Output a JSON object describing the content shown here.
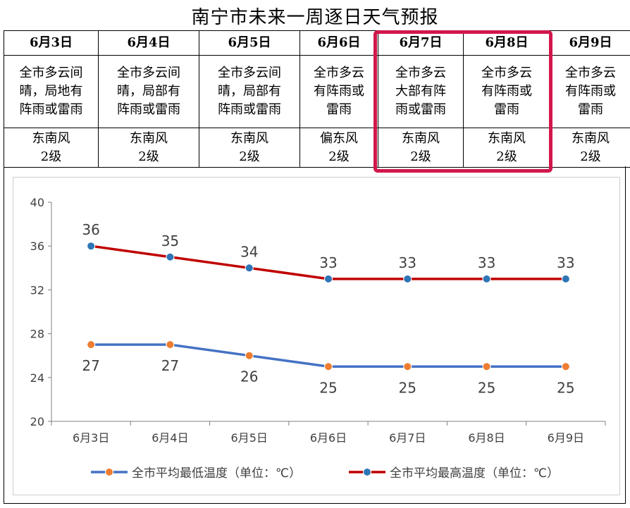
{
  "title": "南宁市未来一周逐日天气预报",
  "table": {
    "dates": [
      "6月3日",
      "6月4日",
      "6月5日",
      "6月6日",
      "6月7日",
      "6月8日",
      "6月9日"
    ],
    "weather": [
      "全市多云间\n晴，局地有\n阵雨或雷雨",
      "全市多云间\n晴，局部有\n阵雨或雷雨",
      "全市多云间\n晴，局部有\n阵雨或雷雨",
      "全市多云\n有阵雨或\n雷雨",
      "全市多云\n大部有阵\n雨或雷雨",
      "全市多云\n有阵雨或\n雷雨",
      "全市多云\n有阵雨或\n雷雨"
    ],
    "wind": [
      "东南风\n2级",
      "东南风\n2级",
      "东南风\n2级",
      "偏东风\n2级",
      "东南风\n2级",
      "东南风\n2级",
      "东南风\n2级"
    ],
    "highlight_color": "#d1174c"
  },
  "chart_data": {
    "type": "line",
    "categories": [
      "6月3日",
      "6月4日",
      "6月5日",
      "6月6日",
      "6月7日",
      "6月8日",
      "6月9日"
    ],
    "series": [
      {
        "name": "全市平均最低温度（单位：℃）",
        "values": [
          27,
          27,
          26,
          25,
          25,
          25,
          25
        ],
        "color": "#4472c4",
        "marker_color": "#ed7d31",
        "label_position": "below"
      },
      {
        "name": "全市平均最高温度（单位：℃）",
        "values": [
          36,
          35,
          34,
          33,
          33,
          33,
          33
        ],
        "color": "#c00000",
        "marker_color": "#2e75b6",
        "label_position": "above"
      }
    ],
    "ylim": [
      20,
      40
    ],
    "yticks": [
      20,
      24,
      28,
      32,
      36,
      40
    ],
    "xlabel": "",
    "ylabel": "",
    "grid": false,
    "legend_position": "bottom"
  }
}
